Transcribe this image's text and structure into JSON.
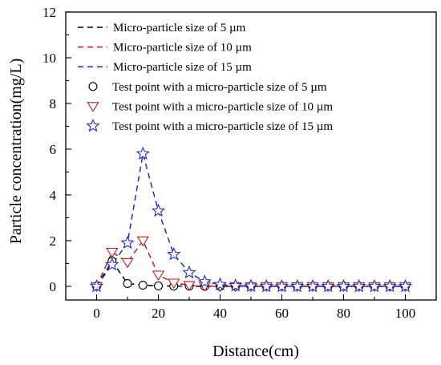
{
  "chart_data": {
    "type": "line",
    "xlabel": "Distance(cm)",
    "ylabel": "Particle concentration(mg/L)",
    "xlim": [
      -10,
      110
    ],
    "ylim": [
      -0.6,
      12
    ],
    "xticks": [
      0,
      20,
      40,
      60,
      80,
      100
    ],
    "xtick_labels": [
      "0",
      "20",
      "40",
      "60",
      "80",
      "100"
    ],
    "yticks": [
      0,
      2,
      4,
      6,
      8,
      10,
      12
    ],
    "ytick_labels": [
      "0",
      "2",
      "4",
      "6",
      "8",
      "10",
      "12"
    ],
    "grid": false,
    "legend_position": "top-left",
    "series": [
      {
        "name": "Micro-particle size of 5 µm",
        "kind": "curve",
        "color": "#000000",
        "dash": "dashed",
        "x": [
          0,
          5,
          10,
          15,
          20,
          25,
          30,
          35,
          40,
          45,
          50,
          55,
          60,
          65,
          70,
          75,
          80,
          85,
          90,
          95,
          100
        ],
        "y": [
          0.0,
          1.1,
          0.12,
          0.05,
          0.02,
          0.01,
          0.01,
          0.0,
          0.0,
          0.0,
          0.0,
          0.0,
          0.0,
          0.0,
          0.0,
          0.0,
          0.0,
          0.0,
          0.0,
          0.0,
          0.0
        ]
      },
      {
        "name": "Micro-particle size of 10 µm",
        "kind": "curve",
        "color": "#b22222",
        "dash": "dashed",
        "x": [
          0,
          5,
          10,
          15,
          20,
          25,
          30,
          35,
          40,
          45,
          50,
          55,
          60,
          65,
          70,
          75,
          80,
          85,
          90,
          95,
          100
        ],
        "y": [
          0.0,
          1.5,
          1.05,
          2.0,
          0.5,
          0.15,
          0.05,
          0.02,
          0.0,
          0.0,
          0.0,
          0.0,
          0.0,
          0.0,
          0.0,
          0.0,
          0.0,
          0.0,
          0.0,
          0.0,
          0.0
        ]
      },
      {
        "name": "Micro-particle size of 15 µm",
        "kind": "curve",
        "color": "#1f2fb0",
        "dash": "dashed",
        "x": [
          0,
          5,
          10,
          15,
          20,
          25,
          30,
          35,
          40,
          45,
          50,
          55,
          60,
          65,
          70,
          75,
          80,
          85,
          90,
          95,
          100
        ],
        "y": [
          0.0,
          0.95,
          1.9,
          5.8,
          3.3,
          1.4,
          0.6,
          0.2,
          0.08,
          0.03,
          0.01,
          0.0,
          0.0,
          0.0,
          0.0,
          0.0,
          0.0,
          0.0,
          0.0,
          0.0,
          0.0
        ]
      },
      {
        "name": "Test point with a micro-particle size of 5 µm",
        "kind": "markers",
        "marker": "circle",
        "color": "#000000",
        "x": [
          0,
          5,
          10,
          15,
          20,
          25,
          30,
          35,
          40,
          45,
          50,
          55,
          60,
          65,
          70,
          75,
          80,
          85,
          90,
          95,
          100
        ],
        "y": [
          0.0,
          1.1,
          0.12,
          0.05,
          0.02,
          0.01,
          0.01,
          0.0,
          0.0,
          0.0,
          0.0,
          0.0,
          0.0,
          0.0,
          0.0,
          0.0,
          0.0,
          0.0,
          0.0,
          0.0,
          0.0
        ]
      },
      {
        "name": "Test point with a micro-particle size of 10 µm",
        "kind": "markers",
        "marker": "triangle-down",
        "color": "#b22222",
        "x": [
          0,
          5,
          10,
          15,
          20,
          25,
          30,
          35,
          40,
          45,
          50,
          55,
          60,
          65,
          70,
          75,
          80,
          85,
          90,
          95,
          100
        ],
        "y": [
          0.0,
          1.5,
          1.05,
          2.0,
          0.5,
          0.15,
          0.05,
          0.02,
          0.0,
          0.0,
          0.0,
          0.0,
          0.0,
          0.0,
          0.0,
          0.0,
          0.0,
          0.0,
          0.0,
          0.0,
          0.0
        ]
      },
      {
        "name": "Test point with a micro-particle size of 15 µm",
        "kind": "markers",
        "marker": "star",
        "color": "#1f2fb0",
        "x": [
          0,
          5,
          10,
          15,
          20,
          25,
          30,
          35,
          40,
          45,
          50,
          55,
          60,
          65,
          70,
          75,
          80,
          85,
          90,
          95,
          100
        ],
        "y": [
          0.0,
          0.95,
          1.9,
          5.8,
          3.3,
          1.4,
          0.6,
          0.2,
          0.08,
          0.03,
          0.01,
          0.0,
          0.0,
          0.0,
          0.0,
          0.0,
          0.0,
          0.0,
          0.0,
          0.0,
          0.0
        ]
      }
    ]
  }
}
